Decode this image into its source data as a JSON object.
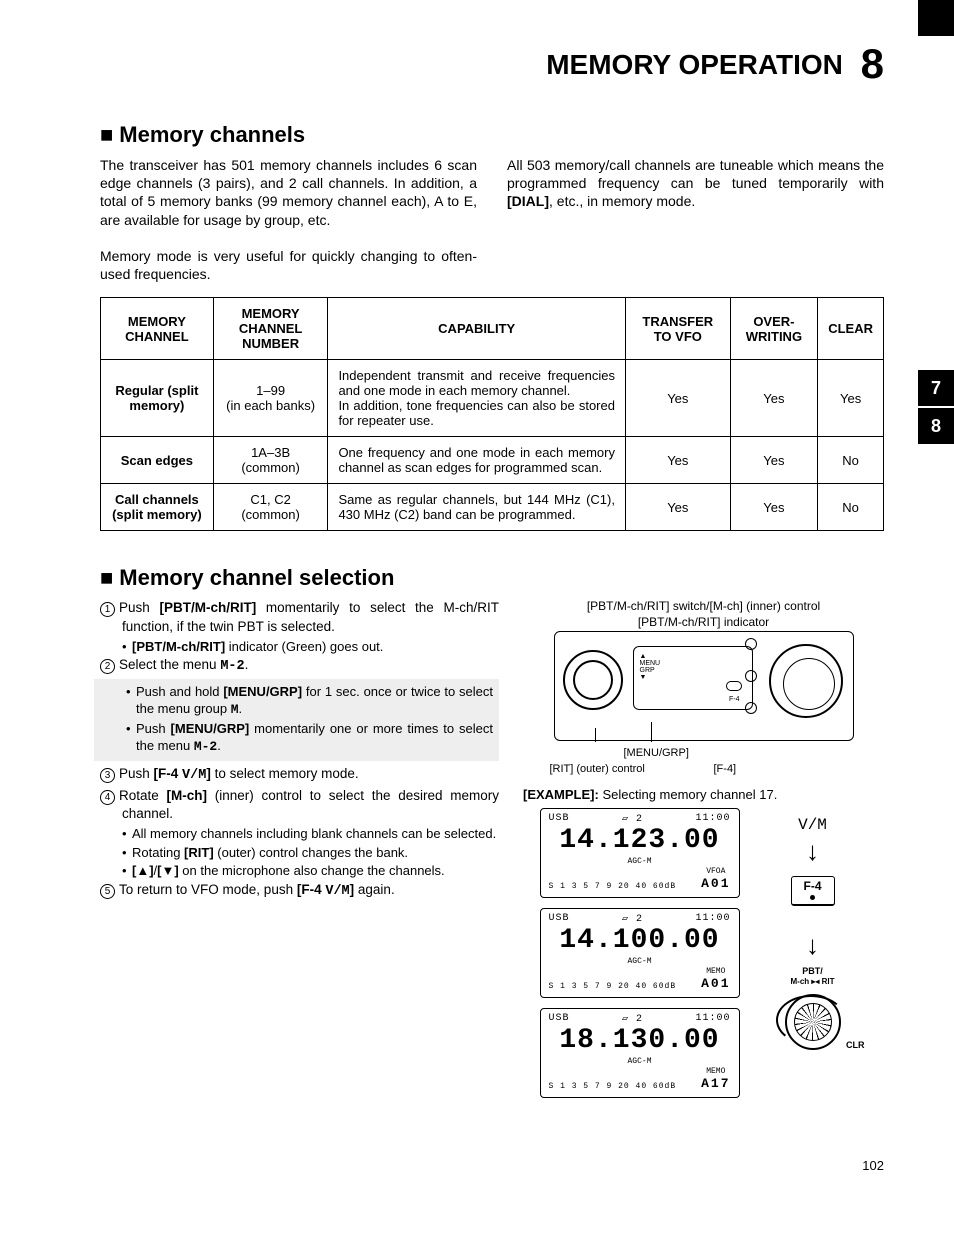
{
  "header": {
    "title": "MEMORY OPERATION",
    "chapter": "8"
  },
  "sideTabs": [
    "7",
    "8"
  ],
  "section1": {
    "heading": "Memory channels",
    "leftPara1": "The transceiver has 501 memory channels includes 6 scan edge channels (3 pairs), and 2 call channels. In addition, a total of 5 memory banks (99 memory channel each), A to E, are available for usage by group, etc.",
    "leftPara2": "Memory mode is very useful for quickly changing to often-used frequencies.",
    "rightPara": "All 503 memory/call channels are tuneable which means the programmed frequency can be tuned temporarily with [DIAL], etc., in memory mode."
  },
  "table": {
    "headers": [
      "MEMORY CHANNEL",
      "MEMORY CHANNEL NUMBER",
      "CAPABILITY",
      "TRANSFER TO VFO",
      "OVER-WRITING",
      "CLEAR"
    ],
    "rows": [
      {
        "name": "Regular (split memory)",
        "num": "1–99\n(in each banks)",
        "cap": "Independent transmit and receive frequencies and one mode in each memory channel.\nIn addition, tone frequencies can also be stored for repeater use.",
        "tvfo": "Yes",
        "ow": "Yes",
        "clr": "Yes"
      },
      {
        "name": "Scan edges",
        "num": "1A–3B\n(common)",
        "cap": "One frequency and one mode in each memory channel as scan edges for programmed scan.",
        "tvfo": "Yes",
        "ow": "Yes",
        "clr": "No"
      },
      {
        "name": "Call channels (split memory)",
        "num": "C1, C2\n(common)",
        "cap": "Same as regular channels, but 144 MHz (C1), 430 MHz (C2) band can be programmed.",
        "tvfo": "Yes",
        "ow": "Yes",
        "clr": "No"
      }
    ]
  },
  "section2": {
    "heading": "Memory channel selection",
    "steps": {
      "s1": "Push [PBT/M-ch/RIT] momentarily to select the M-ch/RIT function, if the twin PBT is selected.",
      "s1a": "[PBT/M-ch/RIT] indicator (Green) goes out.",
      "s2": "Select the menu M-2.",
      "s2a": "Push and hold [MENU/GRP] for 1 sec. once or twice to select the menu group M.",
      "s2b": "Push [MENU/GRP] momentarily one or more times to select the menu M-2.",
      "s3": "Push [F-4 V/M] to select memory mode.",
      "s4": "Rotate [M-ch] (inner) control to select the desired memory channel.",
      "s4a": "All memory channels including blank channels can be selected.",
      "s4b": "Rotating [RIT] (outer) control changes the bank.",
      "s4c": "[▲]/[▼] on the microphone also change the channels.",
      "s5": "To return to VFO mode, push [F-4 V/M] again."
    },
    "diagram": {
      "topLabel": "[PBT/M-ch/RIT] switch/[M-ch] (inner) control",
      "indicatorLabel": "[PBT/M-ch/RIT] indicator",
      "menuGrp": "[MENU/GRP]",
      "rit": "[RIT] (outer) control",
      "f4": "[F-4]"
    },
    "exampleLabel": "[EXAMPLE]:",
    "exampleText": " Selecting memory channel 17.",
    "lcds": [
      {
        "mode": "USB",
        "ant": "▱ 2",
        "time": "11:00",
        "freq": "14.123.00",
        "agc": "AGC-M",
        "vfo": "VFOA",
        "chan": "A01"
      },
      {
        "mode": "USB",
        "ant": "▱ 2",
        "time": "11:00",
        "freq": "14.100.00",
        "agc": "AGC-M",
        "vfo": "MEMO",
        "chan": "A01"
      },
      {
        "mode": "USB",
        "ant": "▱ 2",
        "time": "11:00",
        "freq": "18.130.00",
        "agc": "AGC-M",
        "vfo": "MEMO",
        "chan": "A17"
      }
    ],
    "vmSymbol": "V/M",
    "f4Btn": "F-4",
    "pbtLabel": "PBT/\nM-ch ▸◂ RIT",
    "clr": "CLR"
  },
  "pageNumber": "102",
  "colors": {
    "text": "#000000",
    "bg": "#ffffff",
    "shade": "#eeeeee"
  }
}
